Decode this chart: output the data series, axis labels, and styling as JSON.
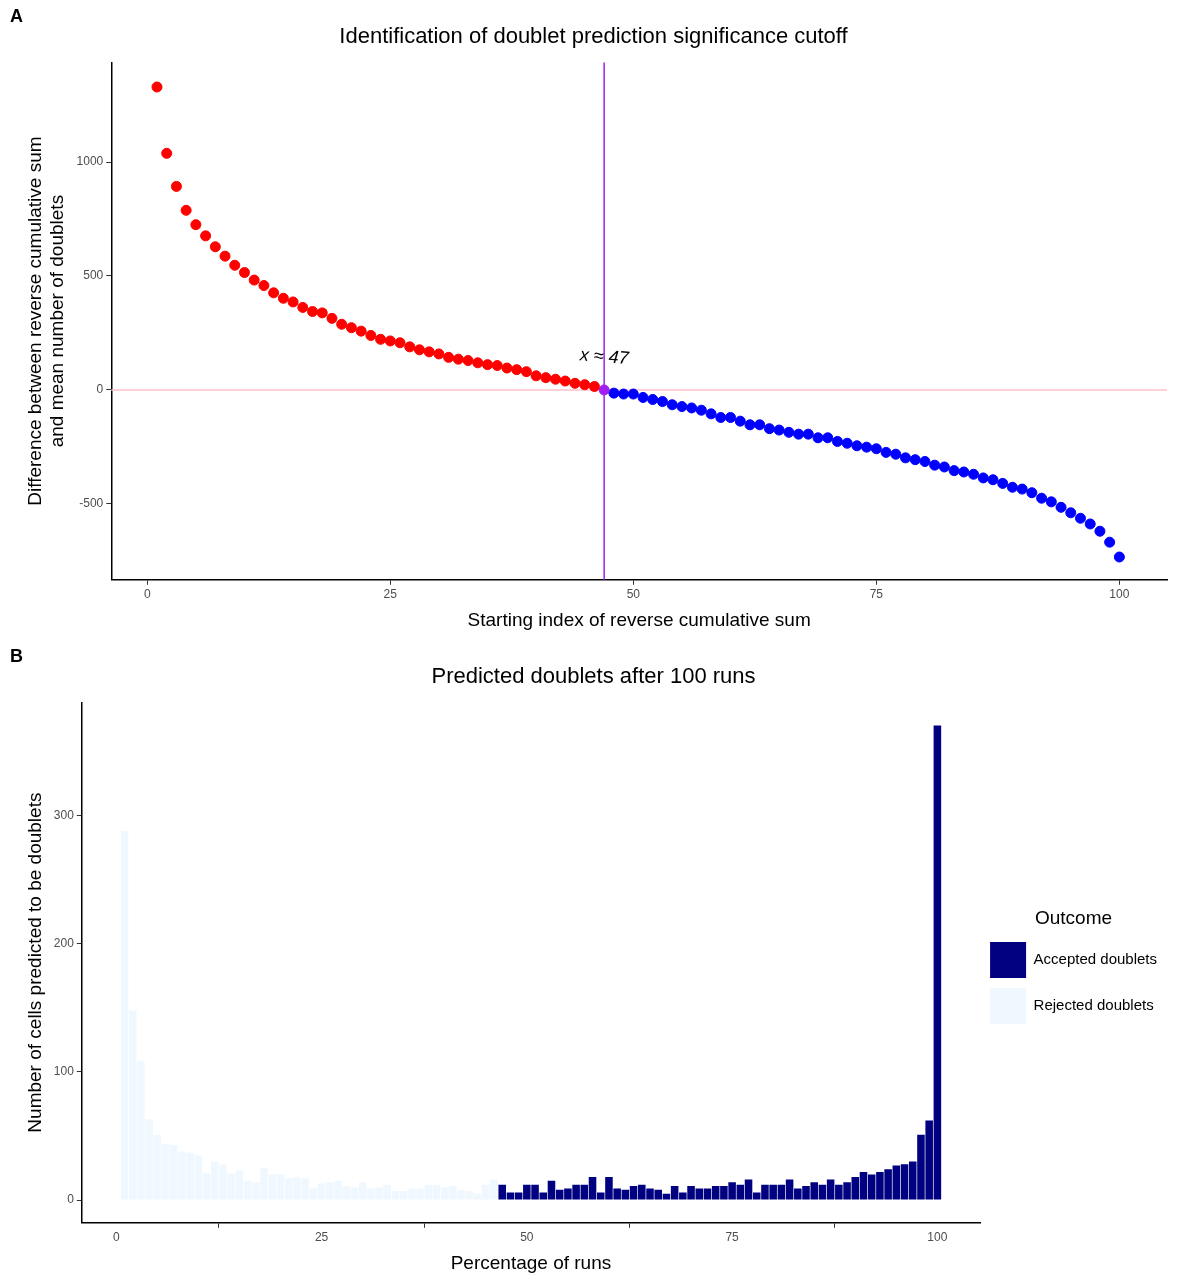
{
  "chart_data": [
    {
      "type": "scatter",
      "title": "Identification of doublet prediction significance cutoff",
      "xlabel": "Starting index of reverse cumulative sum",
      "ylabel": "Difference between reverse cumulative sum\nand mean number of doublets",
      "xlim": [
        -3.7,
        104.9
      ],
      "ylim": [
        -833,
        1437
      ],
      "xticks": [
        0,
        25,
        50,
        75,
        100
      ],
      "yticks": [
        -500,
        0,
        500,
        1000
      ],
      "grid": false,
      "legend": false,
      "marker": "circle",
      "series": [
        {
          "color": "#ff0000",
          "x": [
            1,
            2,
            3,
            4,
            5,
            6,
            7,
            8,
            9,
            10,
            11,
            12,
            13,
            14,
            15,
            16,
            17,
            18,
            19,
            20,
            21,
            22,
            23,
            24,
            25,
            26,
            27,
            28,
            29,
            30,
            31,
            32,
            33,
            34,
            35,
            36,
            37,
            38,
            39,
            40,
            41,
            42,
            43,
            44,
            45,
            46
          ],
          "values": [
            1329,
            1038,
            893,
            788,
            725,
            676,
            628,
            587,
            547,
            515,
            482,
            458,
            426,
            402,
            386,
            362,
            344,
            338,
            314,
            288,
            273,
            258,
            239,
            222,
            215,
            207,
            189,
            176,
            167,
            158,
            143,
            135,
            129,
            119,
            111,
            107,
            96,
            89,
            80,
            62,
            54,
            47,
            39,
            29,
            23,
            15
          ]
        },
        {
          "color": "#a020f0",
          "x": [
            47
          ],
          "values": [
            0
          ]
        },
        {
          "color": "#0000ff",
          "x": [
            48,
            49,
            50,
            51,
            52,
            53,
            54,
            55,
            56,
            57,
            58,
            59,
            60,
            61,
            62,
            63,
            64,
            65,
            66,
            67,
            68,
            69,
            70,
            71,
            72,
            73,
            74,
            75,
            76,
            77,
            78,
            79,
            80,
            81,
            82,
            83,
            84,
            85,
            86,
            87,
            88,
            89,
            90,
            91,
            92,
            93,
            94,
            95,
            96,
            97,
            98,
            99,
            100
          ],
          "values": [
            -14,
            -18,
            -18,
            -33,
            -42,
            -51,
            -65,
            -73,
            -79,
            -89,
            -105,
            -121,
            -121,
            -137,
            -153,
            -153,
            -170,
            -176,
            -186,
            -194,
            -194,
            -210,
            -210,
            -226,
            -234,
            -245,
            -251,
            -258,
            -274,
            -282,
            -298,
            -306,
            -314,
            -330,
            -338,
            -354,
            -360,
            -370,
            -386,
            -394,
            -410,
            -427,
            -435,
            -451,
            -475,
            -491,
            -515,
            -539,
            -563,
            -588,
            -620,
            -668,
            -733
          ]
        }
      ],
      "ref_lines": [
        {
          "axis": "y",
          "value": 0,
          "color": "#ffc0cb"
        },
        {
          "axis": "x",
          "value": 47,
          "color": "#a020f0"
        }
      ],
      "annotations": [
        "A",
        {
          "text": "x ≈ 47",
          "x": 47,
          "y": 144
        }
      ]
    },
    {
      "type": "histogram",
      "title": "Predicted doublets after 100 runs",
      "xlabel": "Percentage of runs",
      "ylabel": "Number of cells predicted to be doublets",
      "legend_title": "Outcome",
      "legend": "right",
      "grid": false,
      "xlim": [
        -4.2,
        105.2
      ],
      "ylim": [
        -17.7,
        388
      ],
      "xticks": [
        0,
        25,
        50,
        75,
        100
      ],
      "yticks": [
        0,
        100,
        200,
        300
      ],
      "bins": [
        0.5,
        1.5,
        2.5,
        3.5,
        4.5,
        5.5,
        6.5,
        7.5,
        8.5,
        9.5,
        10.5,
        11.5,
        12.5,
        13.5,
        14.5,
        15.5,
        16.5,
        17.5,
        18.5,
        19.5,
        20.5,
        21.5,
        22.5,
        23.5,
        24.5,
        25.5,
        26.5,
        27.5,
        28.5,
        29.5,
        30.5,
        31.5,
        32.5,
        33.5,
        34.5,
        35.5,
        36.5,
        37.5,
        38.5,
        39.5,
        40.5,
        41.5,
        42.5,
        43.5,
        44.5,
        45.5,
        46.5,
        47.5,
        48.5,
        49.5,
        50.5,
        51.5,
        52.5,
        53.5,
        54.5,
        55.5,
        56.5,
        57.5,
        58.5,
        59.5,
        60.5,
        61.5,
        62.5,
        63.5,
        64.5,
        65.5,
        66.5,
        67.5,
        68.5,
        69.5,
        70.5,
        71.5,
        72.5,
        73.5,
        74.5,
        75.5,
        76.5,
        77.5,
        78.5,
        79.5,
        80.5,
        81.5,
        82.5,
        83.5,
        84.5,
        85.5,
        86.5,
        87.5,
        88.5,
        89.5,
        90.5,
        91.5,
        92.5,
        93.5,
        94.5,
        95.5,
        96.5,
        97.5,
        98.5,
        99.5,
        100.5
      ],
      "series": [
        {
          "name": "Accepted doublets",
          "color": "#000080",
          "values": [
            null,
            null,
            null,
            null,
            null,
            null,
            null,
            null,
            null,
            null,
            null,
            null,
            null,
            null,
            null,
            null,
            null,
            null,
            null,
            null,
            null,
            null,
            null,
            null,
            null,
            null,
            null,
            null,
            null,
            null,
            null,
            null,
            null,
            null,
            null,
            null,
            null,
            null,
            null,
            null,
            null,
            null,
            null,
            null,
            null,
            null,
            12,
            6,
            6,
            12,
            12,
            6,
            15,
            8,
            9,
            12,
            12,
            18,
            6,
            18,
            9,
            8,
            11,
            12,
            9,
            8,
            5,
            11,
            6,
            11,
            9,
            9,
            11,
            11,
            14,
            12,
            16,
            6,
            12,
            12,
            12,
            16,
            9,
            11,
            14,
            12,
            16,
            12,
            14,
            18,
            22,
            20,
            22,
            24,
            27,
            28,
            30,
            51,
            62,
            370
          ]
        },
        {
          "name": "Rejected doublets",
          "color": "#f0f8ff",
          "values": [
            288,
            148,
            108,
            63,
            51,
            44,
            43,
            38,
            37,
            35,
            21,
            30,
            28,
            21,
            23,
            15,
            14,
            25,
            20,
            20,
            17,
            18,
            17,
            9,
            13,
            14,
            15,
            11,
            10,
            14,
            9,
            10,
            12,
            7,
            7,
            9,
            9,
            12,
            12,
            10,
            11,
            8,
            7,
            5,
            12,
            16,
            null,
            null,
            null,
            null,
            null,
            null,
            null,
            null,
            null,
            null,
            null,
            null,
            null,
            null,
            null,
            null,
            null,
            null,
            null,
            null,
            null,
            null,
            null,
            null,
            null,
            null,
            null,
            null,
            null,
            null,
            null,
            null,
            null,
            null,
            null,
            null,
            null,
            null,
            null,
            null,
            null,
            null,
            null,
            null,
            null,
            null,
            null,
            null,
            null,
            null,
            null,
            null,
            null,
            null
          ]
        }
      ],
      "annotations": [
        "B"
      ]
    }
  ]
}
